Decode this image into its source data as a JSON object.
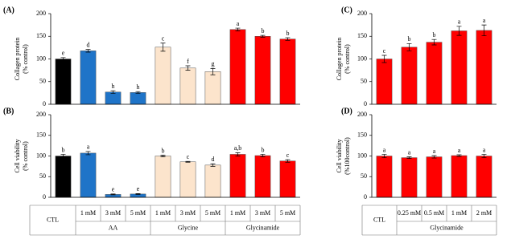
{
  "chart_data": [
    {
      "type": "bar",
      "panel": "(A)",
      "ylabel": [
        "Collagen protein",
        "(% control)"
      ],
      "values": [
        100,
        118,
        27,
        26,
        126,
        80,
        72,
        165,
        150,
        144
      ],
      "errors": [
        3,
        3,
        3,
        2,
        9,
        5,
        7,
        3,
        2,
        3
      ],
      "letters": [
        "e",
        "d",
        "h",
        "h",
        "c",
        "f",
        "g",
        "a",
        "b",
        "b"
      ],
      "colors": [
        "#000000",
        "#1f74c8",
        "#1f74c8",
        "#1f74c8",
        "#fce4cc",
        "#fce4cc",
        "#fce4cc",
        "#ff0000",
        "#ff0000",
        "#ff0000"
      ],
      "ylim": [
        0,
        200
      ],
      "yticks": [
        0,
        50,
        100,
        150,
        200
      ]
    },
    {
      "type": "bar",
      "panel": "(B)",
      "ylabel": [
        "Cell viability",
        "(% control)"
      ],
      "values": [
        100,
        107,
        7,
        8,
        100,
        86,
        78,
        104,
        101,
        88
      ],
      "errors": [
        4,
        4,
        1,
        1,
        2,
        1,
        3,
        4,
        3,
        3
      ],
      "letters": [
        "b",
        "a",
        "e",
        "e",
        "b",
        "c",
        "d",
        "a,b",
        "b",
        "c"
      ],
      "colors": [
        "#000000",
        "#1f74c8",
        "#1f74c8",
        "#1f74c8",
        "#fce4cc",
        "#fce4cc",
        "#fce4cc",
        "#ff0000",
        "#ff0000",
        "#ff0000"
      ],
      "ylim": [
        0,
        200
      ],
      "yticks": [
        0,
        50,
        100,
        150,
        200
      ]
    },
    {
      "type": "bar",
      "panel": "(C)",
      "ylabel": [
        "Collagen protein",
        "(% control)"
      ],
      "values": [
        100,
        126,
        137,
        162,
        163
      ],
      "errors": [
        8,
        8,
        6,
        10,
        12
      ],
      "letters": [
        "c",
        "b",
        "b",
        "a",
        "a"
      ],
      "colors": [
        "#ff0000",
        "#ff0000",
        "#ff0000",
        "#ff0000",
        "#ff0000"
      ],
      "ylim": [
        0,
        200
      ],
      "yticks": [
        0,
        50,
        100,
        150,
        200
      ]
    },
    {
      "type": "bar",
      "panel": "(D)",
      "ylabel": [
        "Cell viability",
        "(%100control)"
      ],
      "values": [
        100,
        96,
        98,
        101,
        100
      ],
      "errors": [
        4,
        2,
        3,
        2,
        4
      ],
      "letters": [
        "a",
        "a",
        "a",
        "a",
        "a"
      ],
      "colors": [
        "#ff0000",
        "#ff0000",
        "#ff0000",
        "#ff0000",
        "#ff0000"
      ],
      "ylim": [
        0,
        200
      ],
      "yticks": [
        0,
        50,
        100,
        150,
        200
      ]
    }
  ],
  "tables": [
    {
      "first": "CTL",
      "doses": [
        "1 mM",
        "3 mM",
        "5 mM",
        "1 mM",
        "3 mM",
        "5 mM",
        "1 mM",
        "3 mM",
        "5 mM"
      ],
      "groups": [
        "AA",
        "Glycine",
        "Glycinamide"
      ]
    },
    {
      "first": "CTL",
      "doses": [
        "0.25 mM",
        "0.5 mM",
        "1 mM",
        "2 mM"
      ],
      "groups": [
        "Glycinamide"
      ]
    }
  ]
}
